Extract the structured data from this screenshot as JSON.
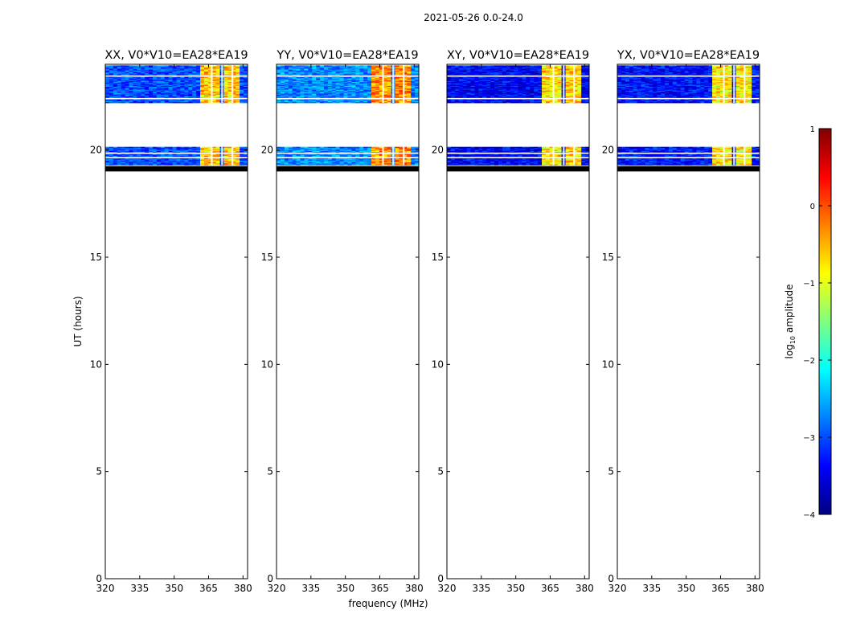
{
  "figure": {
    "suptitle": "2021-05-26 0.0-24.0",
    "xlabel": "frequency (MHz)",
    "ylabel": "UT (hours)"
  },
  "chart_data": {
    "type": "heatmap",
    "xlim": [
      320,
      382
    ],
    "ylim": [
      0,
      24
    ],
    "xticks": [
      320,
      335,
      350,
      365,
      380
    ],
    "yticks": [
      0,
      5,
      10,
      15,
      20
    ],
    "data_time_ranges": [
      [
        19.3,
        20.15
      ],
      [
        22.2,
        23.95
      ]
    ],
    "flagged_band": [
      19.0,
      19.25
    ],
    "rfi_freq_range": [
      362,
      379
    ],
    "rfi_channels": [
      {
        "start": 362,
        "end": 366
      },
      {
        "start": 366.8,
        "end": 370.5
      },
      {
        "start": 371.3,
        "end": 375
      },
      {
        "start": 375.8,
        "end": 379
      }
    ],
    "panels": [
      {
        "title": "XX, V0*V10=EA28*EA19",
        "rfi_log10": -0.6,
        "background_log10": -3.0
      },
      {
        "title": "YY, V0*V10=EA28*EA19",
        "rfi_log10": -0.3,
        "background_log10": -2.7
      },
      {
        "title": "XY, V0*V10=EA28*EA19",
        "rfi_log10": -0.7,
        "background_log10": -3.4
      },
      {
        "title": "YX, V0*V10=EA28*EA19",
        "rfi_log10": -0.8,
        "background_log10": -3.3
      }
    ],
    "colorbar": {
      "label_prefix": "log",
      "label_sub": "10",
      "label_suffix": " amplitude",
      "range": [
        -4,
        1
      ],
      "ticks": [
        "1",
        "0",
        "−1",
        "−2",
        "−3",
        "−4"
      ],
      "colormap": [
        "#000080",
        "#0000ff",
        "#0080ff",
        "#00ffff",
        "#80ff80",
        "#ffff00",
        "#ff8000",
        "#ff0000",
        "#800000"
      ]
    }
  }
}
